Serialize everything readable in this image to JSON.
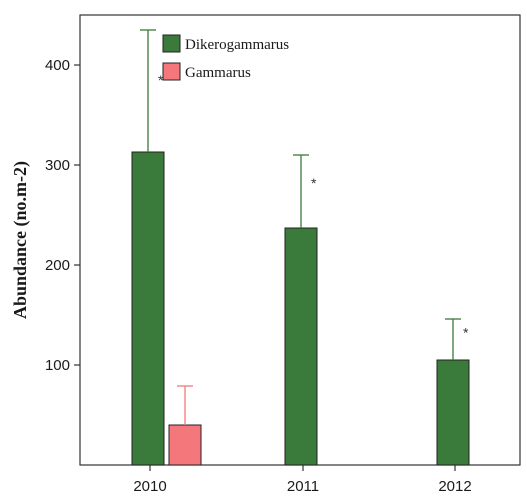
{
  "chart_data": {
    "type": "bar",
    "categories": [
      "2010",
      "2011",
      "2012"
    ],
    "series": [
      {
        "name": "Dikerogammarus",
        "color": "#3a7a3a",
        "values": [
          313,
          237,
          105
        ],
        "error_upper": [
          435,
          310,
          146
        ],
        "significance": [
          "*",
          "*",
          "*"
        ]
      },
      {
        "name": "Gammarus",
        "color": "#f4787b",
        "values": [
          40,
          null,
          null
        ],
        "error_upper": [
          79,
          null,
          null
        ],
        "significance": [
          "",
          "",
          ""
        ]
      }
    ],
    "ylabel": "Abundance (no.m-2)",
    "yticks": [
      "100",
      "200",
      "300",
      "400"
    ],
    "ylim": [
      0,
      450
    ],
    "grid": false,
    "legend_position": "top-left"
  }
}
